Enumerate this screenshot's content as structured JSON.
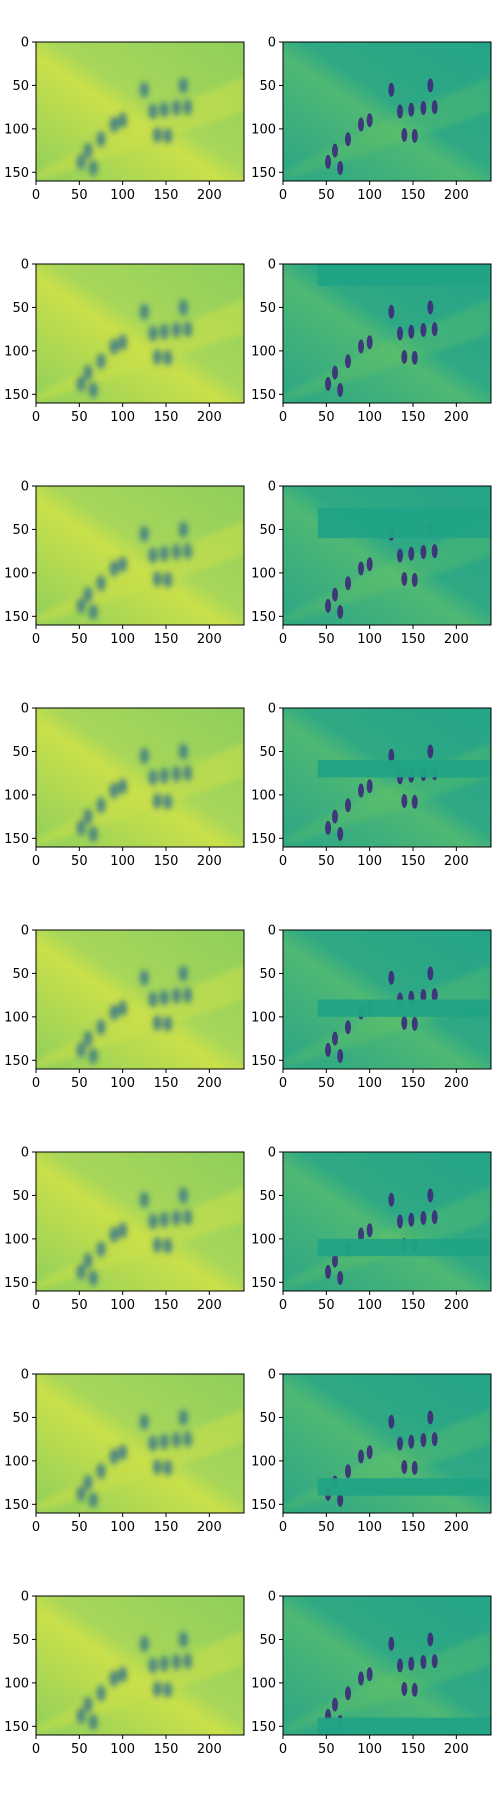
{
  "chart_data": {
    "type": "heatmap",
    "grid": {
      "rows": 8,
      "cols": 2
    },
    "panel_xlim": [
      0,
      240
    ],
    "panel_ylim": [
      160,
      0
    ],
    "panel_xticks": [
      0,
      50,
      100,
      150,
      200
    ],
    "panel_yticks": [
      0,
      50,
      100,
      150
    ],
    "colors": {
      "left_base": "#8fcf5c",
      "left_bright": "#c9e04a",
      "left_dark": "#2f6f8e",
      "right_base": "#25a489",
      "right_bright": "#77cc58",
      "right_dark": "#3b2a7a",
      "band": "#21a386",
      "axis": "#000000"
    },
    "mask_band_rows": [
      [
        0,
        0
      ],
      [
        0,
        25
      ],
      [
        25,
        60
      ],
      [
        60,
        80
      ],
      [
        80,
        100
      ],
      [
        100,
        120
      ],
      [
        120,
        140
      ],
      [
        140,
        160
      ]
    ],
    "figures_rows": [
      {
        "x": 125,
        "y": 55
      },
      {
        "x": 135,
        "y": 80
      },
      {
        "x": 148,
        "y": 78
      },
      {
        "x": 162,
        "y": 76
      },
      {
        "x": 175,
        "y": 75
      },
      {
        "x": 140,
        "y": 107
      },
      {
        "x": 152,
        "y": 108
      },
      {
        "x": 170,
        "y": 50
      },
      {
        "x": 60,
        "y": 125
      },
      {
        "x": 52,
        "y": 138
      },
      {
        "x": 66,
        "y": 145
      },
      {
        "x": 75,
        "y": 112
      },
      {
        "x": 90,
        "y": 95
      },
      {
        "x": 100,
        "y": 90
      }
    ]
  }
}
